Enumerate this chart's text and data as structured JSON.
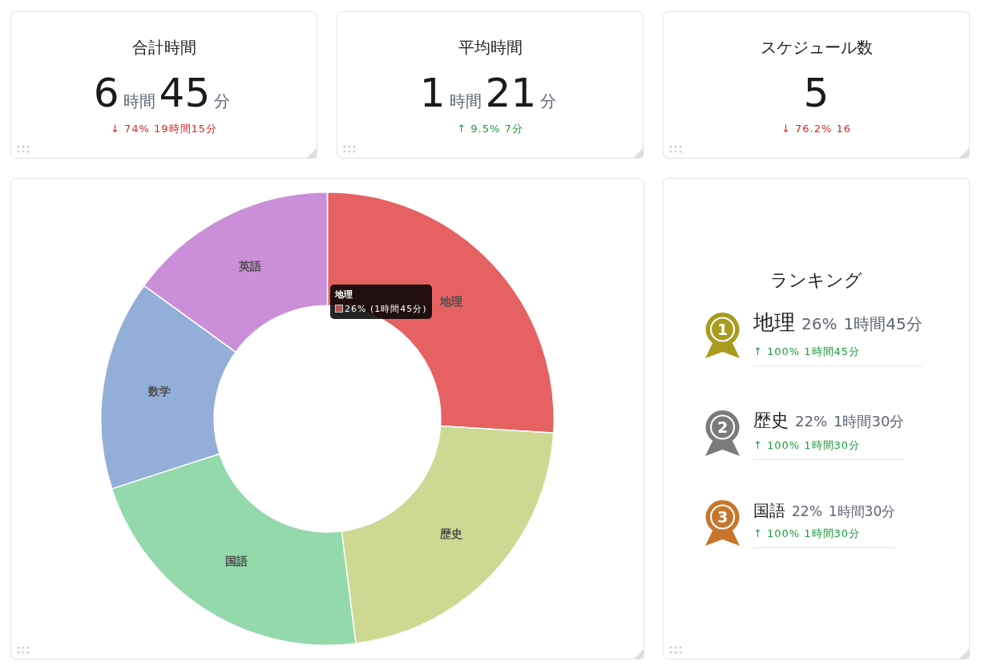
{
  "chart_data": [
    {
      "type": "other",
      "title": "合計時間",
      "annotations": [
        "6時間45分",
        "↓ 74% 19時間15分"
      ],
      "color": "#e02424"
    },
    {
      "type": "other",
      "title": "平均時間",
      "annotations": [
        "1時間21分",
        "↑ 9.5% 7分"
      ],
      "color": "#1d9a3c"
    },
    {
      "type": "other",
      "title": "スケジュール数",
      "annotations": [
        "5",
        "↓ 76.2% 16"
      ],
      "color": "#e02424"
    },
    {
      "type": "donut",
      "categories": [
        "地理",
        "歴史",
        "国語",
        "数学",
        "英語"
      ],
      "values": [
        26,
        22,
        22,
        15,
        15
      ],
      "colors": [
        "#e66262",
        "#cdd993",
        "#94d9ab",
        "#93aed9",
        "#cb8fd9"
      ],
      "annotations": [
        "地理",
        "26% (1時間45分)"
      ]
    },
    {
      "type": "other",
      "title": "ランキング",
      "annotations": [
        "1",
        "地理",
        "26%",
        "1時間45分",
        "↑ 100% 1時間45分",
        "2",
        "歴史",
        "22%",
        "1時間30分",
        "↑ 100% 1時間30分",
        "3",
        "国語",
        "22%",
        "1時間30分",
        "↑ 100% 1時間30分"
      ],
      "color": "#1d9a3c"
    }
  ]
}
